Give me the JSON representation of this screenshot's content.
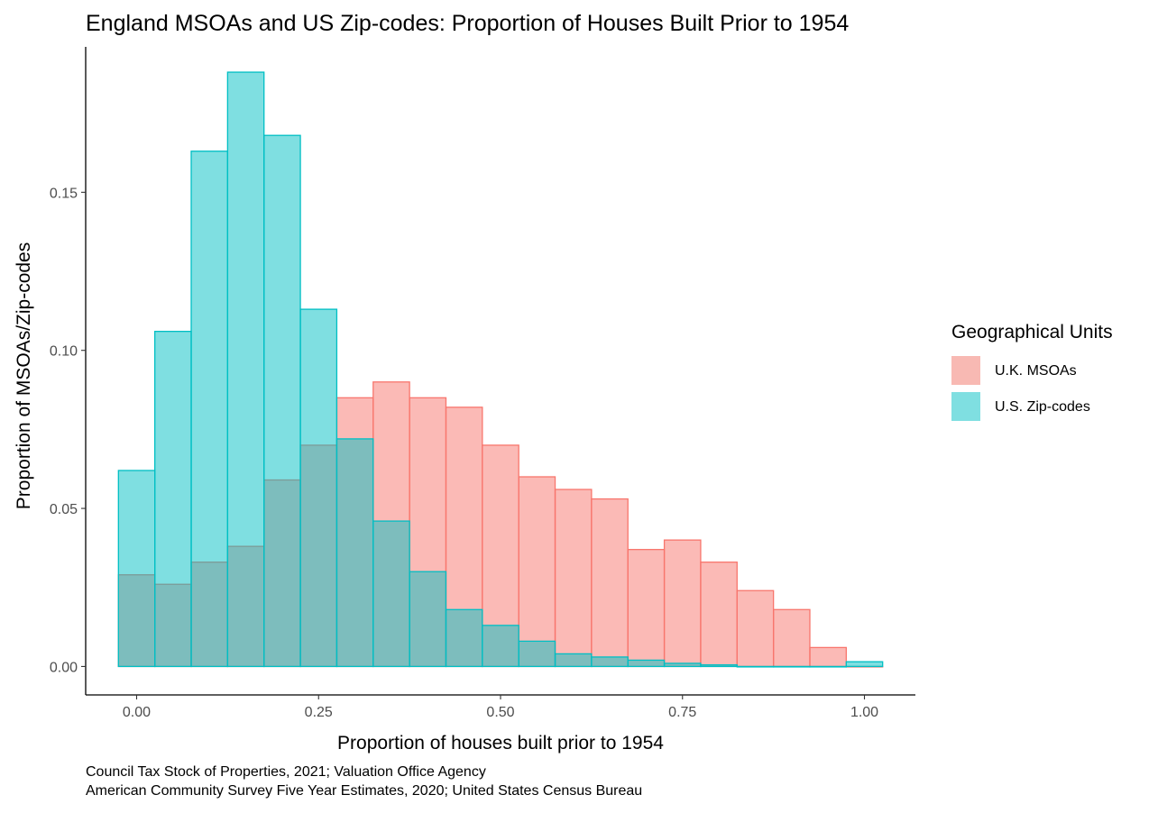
{
  "chart_data": {
    "type": "bar",
    "title": "England MSOAs and US Zip-codes: Proportion of Houses Built Prior to 1954",
    "xlabel": "Proportion of houses built prior to 1954",
    "ylabel": "Proportion of MSOAs/Zip-codes",
    "xlim": [
      -0.07,
      1.07
    ],
    "ylim": [
      -0.009,
      0.196
    ],
    "x_ticks": [
      0,
      0.25,
      0.5,
      0.75,
      1
    ],
    "x_tick_labels": [
      "0.00",
      "0.25",
      "0.50",
      "0.75",
      "1.00"
    ],
    "y_ticks": [
      0,
      0.05,
      0.1,
      0.15
    ],
    "y_tick_labels": [
      "0.00",
      "0.05",
      "0.10",
      "0.15"
    ],
    "bin_width": 0.05,
    "bin_centers": [
      0,
      0.05,
      0.1,
      0.15,
      0.2,
      0.25,
      0.3,
      0.35,
      0.4,
      0.45,
      0.5,
      0.55,
      0.6,
      0.65,
      0.7,
      0.75,
      0.8,
      0.85,
      0.9,
      0.95,
      1.0
    ],
    "series": [
      {
        "name": "U.K. MSOAs",
        "fill": "#F8766D",
        "values": [
          0.029,
          0.026,
          0.033,
          0.038,
          0.059,
          0.07,
          0.085,
          0.09,
          0.085,
          0.082,
          0.07,
          0.06,
          0.056,
          0.053,
          0.037,
          0.04,
          0.033,
          0.024,
          0.018,
          0.006,
          0.0
        ]
      },
      {
        "name": "U.S. Zip-codes",
        "fill": "#00BFC4",
        "values": [
          0.062,
          0.106,
          0.163,
          0.188,
          0.168,
          0.113,
          0.072,
          0.046,
          0.03,
          0.018,
          0.013,
          0.008,
          0.004,
          0.003,
          0.002,
          0.001,
          0.0005,
          0.0,
          0.0,
          0.0,
          0.0015
        ]
      }
    ],
    "legend": {
      "title": "Geographical Units",
      "position": "right",
      "entries": [
        "U.K. MSOAs",
        "U.S. Zip-codes"
      ]
    },
    "caption": [
      "Council Tax Stock of Properties, 2021; Valuation Office Agency",
      "American Community Survey Five Year Estimates, 2020; United States Census Bureau"
    ],
    "grid": false,
    "overlap_color": "#7ABCBA"
  }
}
